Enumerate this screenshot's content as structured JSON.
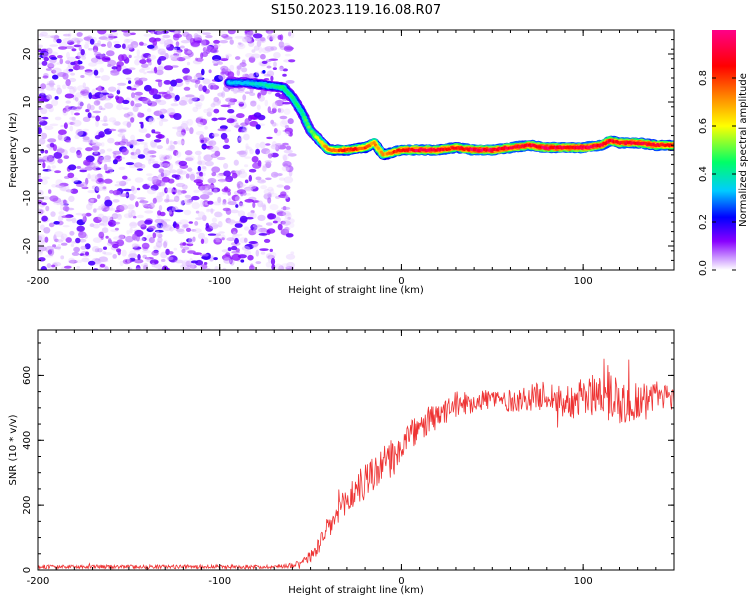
{
  "title": "S150.2023.119.16.08.R07",
  "chart_data": [
    {
      "type": "heatmap",
      "xlabel": "Height of straight line (km)",
      "ylabel": "Frequency (Hz)",
      "xlim": [
        -200,
        150
      ],
      "ylim": [
        -25,
        25
      ],
      "xticks": [
        -200,
        -100,
        0,
        100
      ],
      "xtick_labels": [
        "-200",
        "-100",
        "0",
        "100"
      ],
      "yticks": [
        -20,
        -10,
        0,
        10,
        20
      ],
      "ytick_labels": [
        "-20",
        "-10",
        "0",
        "10",
        "20"
      ],
      "colorbar": {
        "label": "Normalized spectral amplitude",
        "range": [
          0,
          1
        ],
        "ticks": [
          0.0,
          0.2,
          0.4,
          0.6,
          0.8
        ],
        "tick_labels": [
          "0.0",
          "0.2",
          "0.4",
          "0.6",
          "0.8"
        ],
        "colors": [
          "#ffffff",
          "#cc99ff",
          "#8800ff",
          "#0000ff",
          "#00ccff",
          "#00ff66",
          "#ffff00",
          "#ff8800",
          "#ff0000",
          "#ff0088"
        ]
      },
      "noise_region": {
        "x_range": [
          -200,
          -60
        ],
        "y_range": [
          -25,
          25
        ]
      },
      "ridge": {
        "name": "dominant frequency track",
        "x": [
          -95,
          -85,
          -75,
          -65,
          -60,
          -55,
          -50,
          -45,
          -40,
          -30,
          -20,
          -15,
          -10,
          0,
          10,
          20,
          30,
          40,
          50,
          60,
          70,
          80,
          90,
          100,
          110,
          115,
          120,
          130,
          140,
          150
        ],
        "y": [
          14,
          14,
          13.5,
          13,
          11,
          8,
          4,
          2,
          0,
          0,
          0.5,
          1.5,
          -1,
          0,
          0,
          0,
          0.5,
          0,
          0,
          0.5,
          1,
          0.5,
          0.5,
          0.5,
          1,
          2,
          1.5,
          1.5,
          1,
          1
        ],
        "amplitude": [
          0.35,
          0.35,
          0.4,
          0.45,
          0.45,
          0.45,
          0.5,
          0.6,
          0.75,
          0.85,
          0.8,
          0.75,
          0.7,
          0.9,
          0.95,
          0.9,
          0.85,
          0.95,
          0.95,
          0.9,
          0.9,
          0.95,
          0.9,
          0.95,
          0.9,
          0.9,
          0.9,
          0.9,
          0.9,
          0.85
        ]
      }
    },
    {
      "type": "line",
      "xlabel": "Height of straight line (km)",
      "ylabel": "SNR (10 * v/v)",
      "xlim": [
        -200,
        150
      ],
      "ylim": [
        0,
        740
      ],
      "xticks": [
        -200,
        -100,
        0,
        100
      ],
      "xtick_labels": [
        "-200",
        "-100",
        "0",
        "100"
      ],
      "yticks": [
        0,
        200,
        400,
        600
      ],
      "ytick_labels": [
        "0",
        "200",
        "400",
        "600"
      ],
      "series": [
        {
          "name": "SNR",
          "color": "#ee3333",
          "x": [
            -200,
            -150,
            -100,
            -70,
            -60,
            -50,
            -45,
            -40,
            -35,
            -30,
            -25,
            -20,
            -15,
            -10,
            -5,
            0,
            5,
            10,
            15,
            20,
            25,
            30,
            40,
            50,
            60,
            70,
            80,
            90,
            100,
            110,
            115,
            120,
            130,
            140,
            150
          ],
          "y": [
            10,
            10,
            10,
            10,
            15,
            40,
            80,
            130,
            170,
            210,
            250,
            270,
            300,
            320,
            350,
            380,
            420,
            430,
            460,
            470,
            490,
            510,
            520,
            530,
            520,
            530,
            540,
            520,
            530,
            550,
            550,
            520,
            520,
            540,
            530
          ],
          "noise_amplitude": [
            6,
            6,
            6,
            6,
            8,
            20,
            30,
            40,
            45,
            50,
            55,
            60,
            60,
            60,
            55,
            45,
            45,
            45,
            45,
            40,
            40,
            40,
            35,
            35,
            35,
            40,
            45,
            55,
            60,
            70,
            90,
            80,
            60,
            45,
            40
          ]
        }
      ]
    }
  ]
}
